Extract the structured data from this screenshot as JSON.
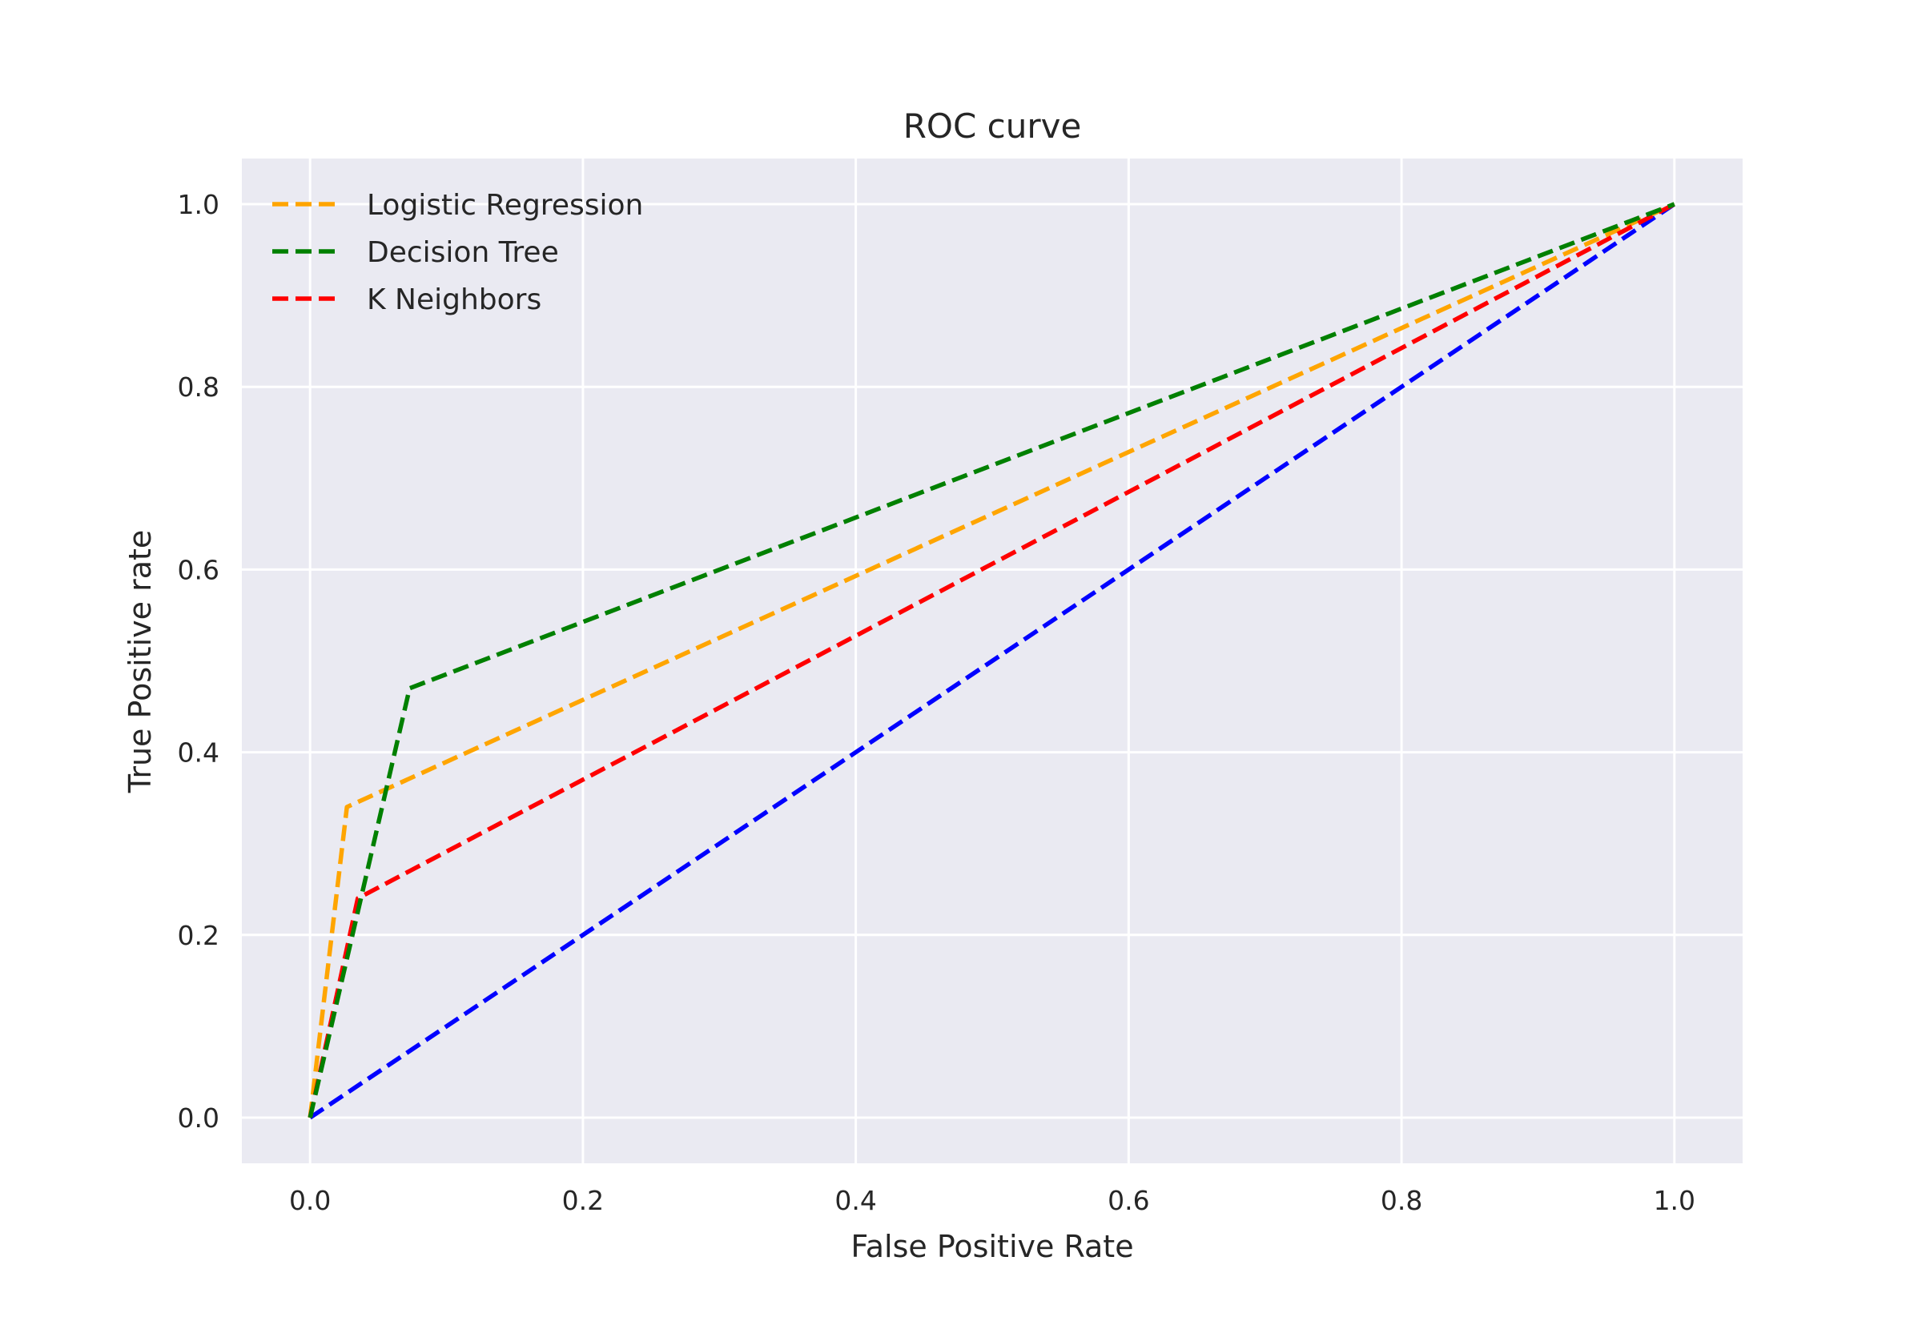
{
  "chart_data": {
    "type": "line",
    "title": "ROC curve",
    "xlabel": "False Positive Rate",
    "ylabel": "True Positive rate",
    "xlim": [
      -0.05,
      1.05
    ],
    "ylim": [
      -0.05,
      1.05
    ],
    "xticks": [
      "0.0",
      "0.2",
      "0.4",
      "0.6",
      "0.8",
      "1.0"
    ],
    "yticks": [
      "0.0",
      "0.2",
      "0.4",
      "0.6",
      "0.8",
      "1.0"
    ],
    "grid": true,
    "legend_position": "top-left",
    "series": [
      {
        "name": "Logistic Regression",
        "color": "#ffa500",
        "style": "dashed",
        "x": [
          0.0,
          0.027,
          1.0
        ],
        "y": [
          0.0,
          0.34,
          1.0
        ]
      },
      {
        "name": "Decision Tree",
        "color": "#008000",
        "style": "dashed",
        "x": [
          0.0,
          0.073,
          1.0
        ],
        "y": [
          0.0,
          0.47,
          1.0
        ]
      },
      {
        "name": "K Neighbors",
        "color": "#ff0000",
        "style": "dashed",
        "x": [
          0.0,
          0.035,
          1.0
        ],
        "y": [
          0.0,
          0.24,
          1.0
        ]
      },
      {
        "color": "#0000ff",
        "style": "dashed",
        "x": [
          0.0,
          1.0
        ],
        "y": [
          0.0,
          1.0
        ]
      }
    ]
  }
}
